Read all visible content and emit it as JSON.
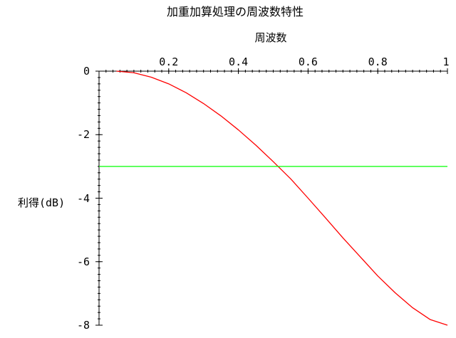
{
  "chart_data": {
    "type": "line",
    "title": "加重加算処理の周波数特性",
    "xlabel": "周波数",
    "ylabel": "利得(dB)",
    "x_axis_position": "top",
    "xlim": [
      0,
      1
    ],
    "ylim": [
      -8,
      0
    ],
    "x_tick_labels": [
      "0.2",
      "0.4",
      "0.6",
      "0.8",
      "1"
    ],
    "y_tick_labels": [
      "0",
      "-2",
      "-4",
      "-6",
      "-8"
    ],
    "grid": false,
    "legend": "none",
    "series": [
      {
        "color": "#ff0000",
        "x": [
          0.05,
          0.1,
          0.15,
          0.2,
          0.25,
          0.3,
          0.35,
          0.4,
          0.45,
          0.5,
          0.55,
          0.6,
          0.65,
          0.7,
          0.75,
          0.8,
          0.85,
          0.9,
          0.95,
          1.0
        ],
        "y": [
          0.0,
          -0.05,
          -0.19,
          -0.4,
          -0.68,
          -1.02,
          -1.41,
          -1.85,
          -2.33,
          -2.85,
          -3.39,
          -4.0,
          -4.62,
          -5.25,
          -5.85,
          -6.45,
          -6.98,
          -7.45,
          -7.82,
          -8.0
        ]
      },
      {
        "color": "#00ff00",
        "x": [
          0.0,
          1.0
        ],
        "y": [
          -3,
          -3
        ]
      }
    ]
  }
}
